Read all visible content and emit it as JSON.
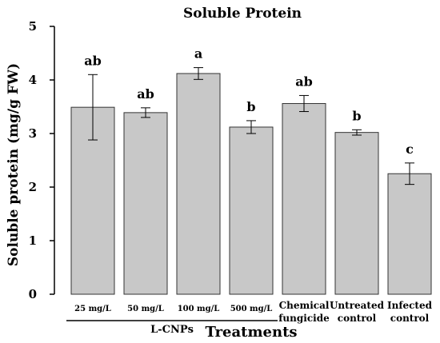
{
  "chart_data": {
    "type": "bar",
    "title": "Soluble Protein",
    "xlabel": "Treatments",
    "ylabel": "Soluble protein (mg/g FW)",
    "ylim": [
      0,
      5
    ],
    "yticks": [
      "0",
      "1",
      "2",
      "3",
      "4",
      "5"
    ],
    "categories": [
      [
        "25 mg/L"
      ],
      [
        "50 mg/L"
      ],
      [
        "100 mg/L"
      ],
      [
        "500 mg/L"
      ],
      [
        "Chemical",
        "fungicide"
      ],
      [
        "Untreated",
        "control"
      ],
      [
        "Infected",
        "control"
      ]
    ],
    "values": [
      3.49,
      3.39,
      4.12,
      3.12,
      3.56,
      3.02,
      2.25
    ],
    "errors": [
      0.61,
      0.09,
      0.11,
      0.12,
      0.15,
      0.05,
      0.2
    ],
    "significance": [
      "ab",
      "ab",
      "a",
      "b",
      "ab",
      "b",
      "c"
    ],
    "group_label": "L-CNPs",
    "group_span": [
      0,
      3
    ],
    "bar_color": "#c8c8c8",
    "grid": false
  }
}
